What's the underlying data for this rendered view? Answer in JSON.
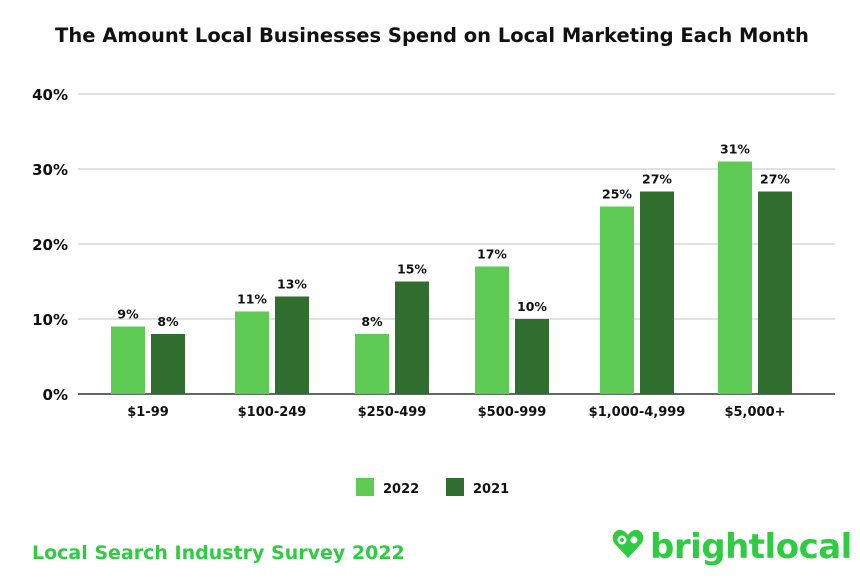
{
  "chart_data": {
    "type": "bar",
    "title": "The Amount Local Businesses Spend on Local Marketing Each Month",
    "categories": [
      "$1-99",
      "$100-249",
      "$250-499",
      "$500-999",
      "$1,000-4,999",
      "$5,000+"
    ],
    "series": [
      {
        "name": "2022",
        "values": [
          9,
          11,
          8,
          17,
          25,
          31
        ],
        "color": "#5ecb54"
      },
      {
        "name": "2021",
        "values": [
          8,
          13,
          15,
          10,
          27,
          27
        ],
        "color": "#306e30"
      }
    ],
    "ylim": [
      0,
      40
    ],
    "yticks": [
      "0%",
      "10%",
      "20%",
      "30%",
      "40%"
    ],
    "grid": true,
    "legend": "bottom",
    "value_suffix": "%"
  },
  "footer": {
    "survey": "Local Search Industry Survey 2022",
    "brand": "brightlocal",
    "brand_color": "#2ecc40"
  }
}
